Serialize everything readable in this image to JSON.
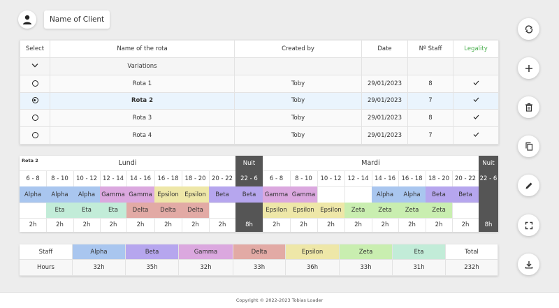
{
  "header": {
    "client_name": "Name of Client"
  },
  "rota_list": {
    "columns": [
      "Select",
      "Name of the rota",
      "Created by",
      "Date",
      "Nº Staff",
      "Legality"
    ],
    "variations_label": "Variations",
    "rows": [
      {
        "name": "Rota 1",
        "created_by": "Toby",
        "date": "29/01/2023",
        "staff": "8",
        "selected": false
      },
      {
        "name": "Rota 2",
        "created_by": "Toby",
        "date": "29/01/2023",
        "staff": "7",
        "selected": true
      },
      {
        "name": "Rota 3",
        "created_by": "Toby",
        "date": "29/01/2023",
        "staff": "8",
        "selected": false
      },
      {
        "name": "Rota 4",
        "created_by": "Toby",
        "date": "29/01/2023",
        "staff": "7",
        "selected": false
      }
    ]
  },
  "schedule": {
    "rota_label": "Rota 2",
    "days": [
      {
        "name": "Lundi",
        "night_label": "Nuit"
      },
      {
        "name": "Mardi",
        "night_label": "Nuit"
      }
    ],
    "slots": [
      "6 - 8",
      "8 - 10",
      "10 - 12",
      "12 - 14",
      "14 - 16",
      "16 - 18",
      "18 - 20",
      "20 - 22",
      "22 - 6",
      "6 - 8",
      "8 - 10",
      "10 - 12",
      "12 - 14",
      "14 - 16",
      "16 - 18",
      "18 - 20",
      "20 - 22",
      "22 - 6"
    ],
    "row1": [
      "Alpha",
      "Alpha",
      "Alpha",
      "Gamma",
      "Gamma",
      "Epsilon",
      "Epsilon",
      "Beta",
      "Beta",
      "Gamma",
      "Gamma",
      "",
      "",
      "Alpha",
      "Alpha",
      "Beta",
      "Beta",
      ""
    ],
    "row2": [
      "",
      "Eta",
      "Eta",
      "Eta",
      "Delta",
      "Delta",
      "Delta",
      "",
      "",
      "Epsilon",
      "Epsilon",
      "Epsilon",
      "Zeta",
      "Zeta",
      "Zeta",
      "Zeta",
      "",
      ""
    ],
    "hours": [
      "2h",
      "2h",
      "2h",
      "2h",
      "2h",
      "2h",
      "2h",
      "2h",
      "8h",
      "2h",
      "2h",
      "2h",
      "2h",
      "2h",
      "2h",
      "2h",
      "2h",
      "8h"
    ]
  },
  "colors": {
    "Alpha": "#a9c6ef",
    "Beta": "#b6a6ee",
    "Gamma": "#dba8df",
    "Delta": "#e2aaa5",
    "Epsilon": "#eee7a8",
    "Zeta": "#c9eeb0",
    "Eta": "#c2ecd8",
    "night": "#555555",
    "legality": "#4caf50",
    "selected_row": "#eaf4fd"
  },
  "totals": {
    "staff_label": "Staff",
    "hours_label": "Hours",
    "total_label": "Total",
    "staff": [
      "Alpha",
      "Beta",
      "Gamma",
      "Delta",
      "Epsilon",
      "Zeta",
      "Eta"
    ],
    "hours": [
      "32h",
      "35h",
      "32h",
      "33h",
      "36h",
      "33h",
      "31h"
    ],
    "total_hours": "232h"
  },
  "actions": [
    "refresh-icon",
    "plus-icon",
    "trash-icon",
    "copy-icon",
    "pencil-icon",
    "fullscreen-icon",
    "download-icon"
  ],
  "footer": {
    "copyright": "Copyright © 2022-2023 Tobias Loader"
  }
}
